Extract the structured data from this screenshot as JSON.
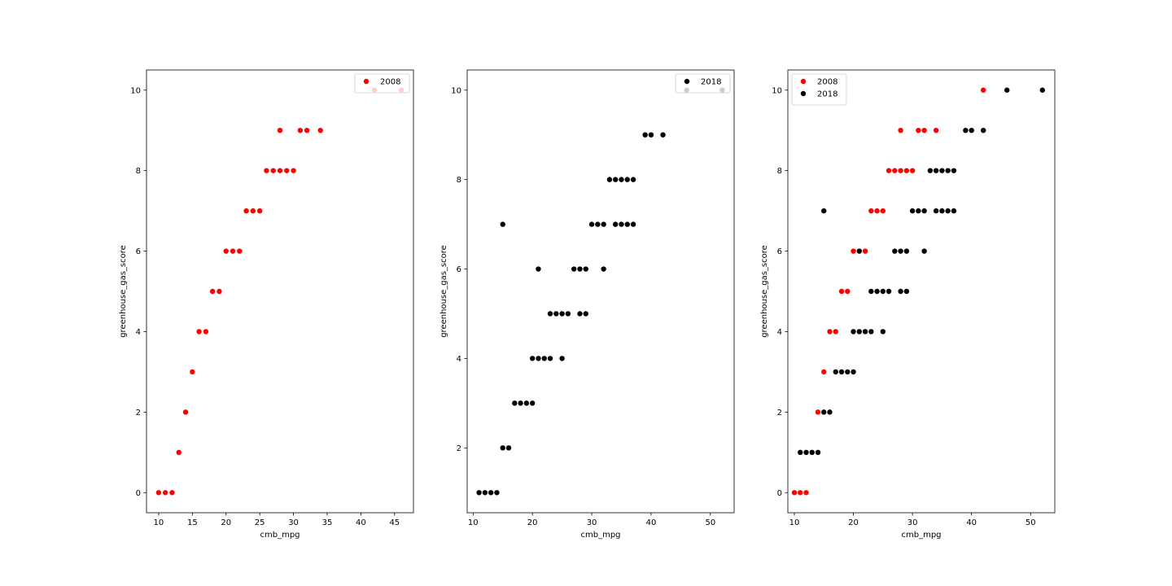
{
  "chart_data": [
    {
      "type": "scatter",
      "xlabel": "cmb_mpg",
      "ylabel": "greenhouse_gas_score",
      "xlim": [
        8.2,
        47.8
      ],
      "ylim": [
        -0.5,
        10.5
      ],
      "xticks": [
        10,
        15,
        20,
        25,
        30,
        35,
        40,
        45
      ],
      "yticks": [
        0,
        2,
        4,
        6,
        8,
        10
      ],
      "grid": false,
      "legend_position": "upper right",
      "series": [
        {
          "name": "2008",
          "color": "#ff0000",
          "points": [
            [
              10,
              0
            ],
            [
              11,
              0
            ],
            [
              12,
              0
            ],
            [
              13,
              1
            ],
            [
              14,
              2
            ],
            [
              15,
              3
            ],
            [
              16,
              4
            ],
            [
              17,
              4
            ],
            [
              18,
              5
            ],
            [
              19,
              5
            ],
            [
              20,
              6
            ],
            [
              21,
              6
            ],
            [
              22,
              6
            ],
            [
              23,
              7
            ],
            [
              24,
              7
            ],
            [
              25,
              7
            ],
            [
              26,
              8
            ],
            [
              27,
              8
            ],
            [
              28,
              8
            ],
            [
              29,
              8
            ],
            [
              30,
              8
            ],
            [
              28,
              9
            ],
            [
              31,
              9
            ],
            [
              32,
              9
            ],
            [
              34,
              9
            ],
            [
              42,
              10
            ],
            [
              46,
              10
            ]
          ]
        }
      ]
    },
    {
      "type": "scatter",
      "xlabel": "cmb_mpg",
      "ylabel": "greenhouse_gas_score",
      "xlim": [
        9.0,
        54.0
      ],
      "ylim": [
        0.55,
        10.45
      ],
      "xticks": [
        10,
        20,
        30,
        40,
        50
      ],
      "yticks": [
        2,
        4,
        6,
        8,
        10
      ],
      "grid": false,
      "legend_position": "upper right",
      "series": [
        {
          "name": "2018",
          "color": "#000000",
          "points": [
            [
              11,
              1
            ],
            [
              12,
              1
            ],
            [
              13,
              1
            ],
            [
              14,
              1
            ],
            [
              15,
              2
            ],
            [
              16,
              2
            ],
            [
              17,
              3
            ],
            [
              18,
              3
            ],
            [
              19,
              3
            ],
            [
              20,
              3
            ],
            [
              20,
              4
            ],
            [
              21,
              4
            ],
            [
              22,
              4
            ],
            [
              23,
              4
            ],
            [
              25,
              4
            ],
            [
              23,
              5
            ],
            [
              24,
              5
            ],
            [
              25,
              5
            ],
            [
              26,
              5
            ],
            [
              28,
              5
            ],
            [
              29,
              5
            ],
            [
              21,
              6
            ],
            [
              27,
              6
            ],
            [
              28,
              6
            ],
            [
              29,
              6
            ],
            [
              32,
              6
            ],
            [
              15,
              7
            ],
            [
              30,
              7
            ],
            [
              31,
              7
            ],
            [
              32,
              7
            ],
            [
              34,
              7
            ],
            [
              35,
              7
            ],
            [
              36,
              7
            ],
            [
              37,
              7
            ],
            [
              33,
              8
            ],
            [
              34,
              8
            ],
            [
              35,
              8
            ],
            [
              36,
              8
            ],
            [
              37,
              8
            ],
            [
              39,
              9
            ],
            [
              40,
              9
            ],
            [
              42,
              9
            ],
            [
              46,
              10
            ],
            [
              52,
              10
            ]
          ]
        }
      ]
    },
    {
      "type": "scatter",
      "xlabel": "cmb_mpg",
      "ylabel": "greenhouse_gas_score",
      "xlim": [
        8.9,
        54.1
      ],
      "ylim": [
        -0.5,
        10.5
      ],
      "xticks": [
        10,
        20,
        30,
        40,
        50
      ],
      "yticks": [
        0,
        2,
        4,
        6,
        8,
        10
      ],
      "grid": false,
      "legend_position": "upper left",
      "series": [
        {
          "name": "2008",
          "color": "#ff0000",
          "points": [
            [
              10,
              0
            ],
            [
              11,
              0
            ],
            [
              12,
              0
            ],
            [
              14,
              2
            ],
            [
              15,
              3
            ],
            [
              16,
              4
            ],
            [
              17,
              4
            ],
            [
              18,
              5
            ],
            [
              19,
              5
            ],
            [
              20,
              6
            ],
            [
              22,
              6
            ],
            [
              23,
              7
            ],
            [
              24,
              7
            ],
            [
              25,
              7
            ],
            [
              26,
              8
            ],
            [
              27,
              8
            ],
            [
              28,
              8
            ],
            [
              29,
              8
            ],
            [
              30,
              8
            ],
            [
              28,
              9
            ],
            [
              31,
              9
            ],
            [
              32,
              9
            ],
            [
              34,
              9
            ],
            [
              42,
              10
            ]
          ]
        },
        {
          "name": "2018",
          "color": "#000000",
          "points": [
            [
              11,
              1
            ],
            [
              12,
              1
            ],
            [
              13,
              1
            ],
            [
              14,
              1
            ],
            [
              15,
              2
            ],
            [
              16,
              2
            ],
            [
              17,
              3
            ],
            [
              18,
              3
            ],
            [
              19,
              3
            ],
            [
              20,
              3
            ],
            [
              20,
              4
            ],
            [
              21,
              4
            ],
            [
              22,
              4
            ],
            [
              23,
              4
            ],
            [
              25,
              4
            ],
            [
              23,
              5
            ],
            [
              24,
              5
            ],
            [
              25,
              5
            ],
            [
              26,
              5
            ],
            [
              28,
              5
            ],
            [
              29,
              5
            ],
            [
              21,
              6
            ],
            [
              27,
              6
            ],
            [
              28,
              6
            ],
            [
              29,
              6
            ],
            [
              32,
              6
            ],
            [
              15,
              7
            ],
            [
              30,
              7
            ],
            [
              31,
              7
            ],
            [
              32,
              7
            ],
            [
              34,
              7
            ],
            [
              35,
              7
            ],
            [
              36,
              7
            ],
            [
              37,
              7
            ],
            [
              33,
              8
            ],
            [
              34,
              8
            ],
            [
              35,
              8
            ],
            [
              36,
              8
            ],
            [
              37,
              8
            ],
            [
              39,
              9
            ],
            [
              40,
              9
            ],
            [
              42,
              9
            ],
            [
              46,
              10
            ],
            [
              52,
              10
            ]
          ]
        }
      ]
    }
  ]
}
